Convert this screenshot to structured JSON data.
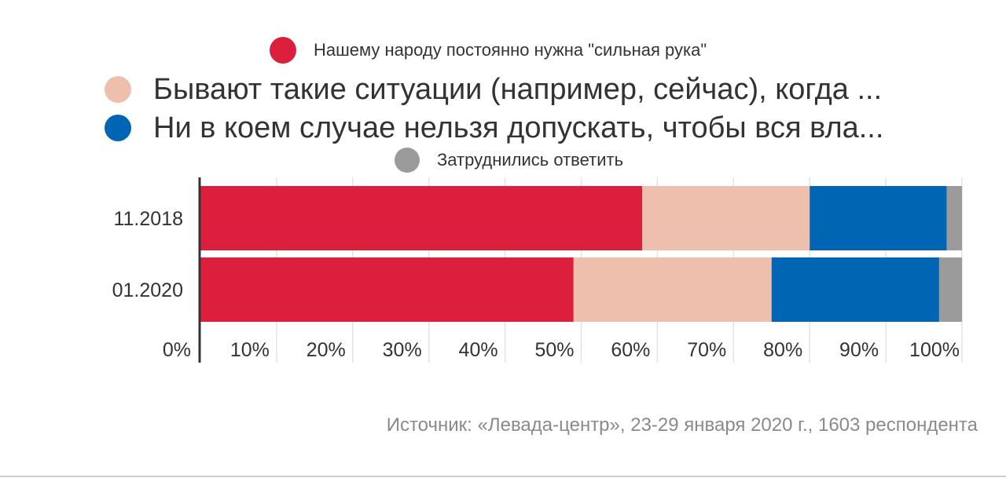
{
  "chart_data": {
    "type": "bar",
    "orientation": "horizontal",
    "stacked": true,
    "categories": [
      "11.2018",
      "01.2020"
    ],
    "series": [
      {
        "name": "Нашему народу постоянно нужна \"сильная рука\"",
        "color": "#dc1f3c",
        "values": [
          58,
          49
        ]
      },
      {
        "name": "Бывают такие ситуации (например, сейчас), когда ...",
        "color": "#efbfae",
        "values": [
          22,
          26
        ]
      },
      {
        "name": "Ни в коем случае нельзя допускать, чтобы вся вла...",
        "color": "#0066b3",
        "values": [
          18,
          22
        ]
      },
      {
        "name": "Затруднились ответить",
        "color": "#9b9b9b",
        "values": [
          2,
          3
        ]
      }
    ],
    "xlim": [
      0,
      100
    ],
    "xticks": [
      "0%",
      "10%",
      "20%",
      "30%",
      "40%",
      "50%",
      "60%",
      "70%",
      "80%",
      "90%",
      "100%"
    ],
    "grid": true,
    "legend_position": "top"
  },
  "source": "Источник: «Левада-центр», 23-29 января 2020 г., 1603 респондента"
}
